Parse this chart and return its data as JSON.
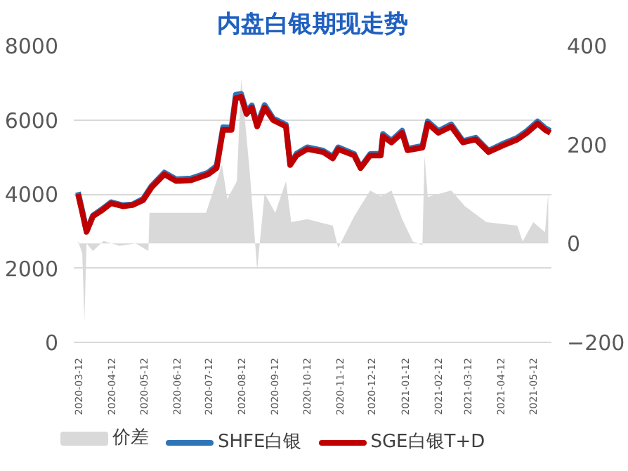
{
  "chart_data": {
    "type": "line",
    "title": "内盘白银期现走势",
    "xlim": [
      "2020-03-08",
      "2021-05-30"
    ],
    "xticks": [
      {
        "value": "2020-03-12",
        "label": "2020-03-12"
      },
      {
        "value": "2020-04-12",
        "label": "2020-04-12"
      },
      {
        "value": "2020-05-12",
        "label": "2020-05-12"
      },
      {
        "value": "2020-06-12",
        "label": "2020-06-12"
      },
      {
        "value": "2020-07-12",
        "label": "2020-07-12"
      },
      {
        "value": "2020-08-12",
        "label": "2020-08-12"
      },
      {
        "value": "2020-09-12",
        "label": "2020-09-12"
      },
      {
        "value": "2020-10-12",
        "label": "2020-10-12"
      },
      {
        "value": "2020-11-12",
        "label": "2020-11-12"
      },
      {
        "value": "2020-12-12",
        "label": "2020-12-12"
      },
      {
        "value": "2021-01-12",
        "label": "2021-01-12"
      },
      {
        "value": "2021-02-12",
        "label": "2021-02-12"
      },
      {
        "value": "2021-03-12",
        "label": "2021-03-12"
      },
      {
        "value": "2021-04-12",
        "label": "2021-04-12"
      },
      {
        "value": "2021-05-12",
        "label": "2021-05-12"
      }
    ],
    "ylim": [
      0,
      8000
    ],
    "yticks": [
      0,
      2000,
      4000,
      6000,
      8000
    ],
    "y2lim": [
      -200,
      400
    ],
    "y2ticks": [
      -200,
      0,
      200,
      400
    ],
    "grid": "y",
    "legend": "bottom",
    "series": [
      {
        "name": "价差",
        "type": "area",
        "axis": "y2",
        "color": "#d9d9d9",
        "x": [
          "2020-03-12",
          "2020-03-16",
          "2020-03-18",
          "2020-03-20",
          "2020-03-26",
          "2020-04-05",
          "2020-04-20",
          "2020-05-05",
          "2020-05-17",
          "2020-05-18",
          "2020-06-10",
          "2020-07-10",
          "2020-07-25",
          "2020-07-30",
          "2020-08-08",
          "2020-08-12",
          "2020-08-20",
          "2020-08-27",
          "2020-09-03",
          "2020-09-13",
          "2020-09-23",
          "2020-09-28",
          "2020-10-13",
          "2020-11-06",
          "2020-11-11",
          "2020-11-26",
          "2020-12-11",
          "2020-12-21",
          "2020-12-31",
          "2021-01-10",
          "2021-01-20",
          "2021-01-29",
          "2021-01-31",
          "2021-02-03",
          "2021-02-25",
          "2021-03-10",
          "2021-03-30",
          "2021-04-28",
          "2021-05-03",
          "2021-05-13",
          "2021-05-24",
          "2021-05-27"
        ],
        "values": [
          5,
          -20,
          -157,
          0,
          -15,
          5,
          -5,
          0,
          -15,
          62,
          62,
          62,
          159,
          90,
          126,
          333,
          146,
          -54,
          101,
          62,
          126,
          43,
          49,
          36,
          -9,
          55,
          107,
          95,
          107,
          49,
          4,
          -3,
          178,
          94,
          107,
          75,
          43,
          36,
          4,
          43,
          23,
          101
        ]
      },
      {
        "name": "SHFE白银",
        "type": "line",
        "color": "#2e75b6",
        "x": [
          "2020-03-12",
          "2020-03-16",
          "2020-03-20",
          "2020-03-26",
          "2020-04-03",
          "2020-04-12",
          "2020-04-23",
          "2020-05-02",
          "2020-05-12",
          "2020-05-20",
          "2020-06-01",
          "2020-06-12",
          "2020-06-26",
          "2020-07-12",
          "2020-07-20",
          "2020-07-26",
          "2020-08-03",
          "2020-08-07",
          "2020-08-12",
          "2020-08-17",
          "2020-08-22",
          "2020-08-27",
          "2020-09-03",
          "2020-09-11",
          "2020-09-23",
          "2020-09-27",
          "2020-10-03",
          "2020-10-13",
          "2020-10-28",
          "2020-11-06",
          "2020-11-11",
          "2020-11-26",
          "2020-12-02",
          "2020-12-11",
          "2020-12-21",
          "2020-12-23",
          "2020-12-31",
          "2021-01-10",
          "2021-01-15",
          "2021-01-29",
          "2021-02-03",
          "2021-02-13",
          "2021-02-25",
          "2021-03-08",
          "2021-03-20",
          "2021-04-01",
          "2021-04-14",
          "2021-04-28",
          "2021-05-07",
          "2021-05-17",
          "2021-05-24",
          "2021-05-29"
        ],
        "values": [
          4050,
          3550,
          3000,
          3420,
          3580,
          3780,
          3700,
          3720,
          3870,
          4220,
          4580,
          4400,
          4420,
          4580,
          4760,
          5800,
          5790,
          6680,
          6700,
          6230,
          6390,
          5870,
          6400,
          6040,
          5870,
          4800,
          5090,
          5260,
          5170,
          5010,
          5260,
          5080,
          4720,
          5080,
          5090,
          5620,
          5440,
          5710,
          5220,
          5300,
          5960,
          5700,
          5880,
          5430,
          5520,
          5170,
          5350,
          5520,
          5700,
          5960,
          5780,
          5700
        ]
      },
      {
        "name": "SGE白银T+D",
        "type": "line",
        "color": "#c00000",
        "x": [
          "2020-03-12",
          "2020-03-16",
          "2020-03-20",
          "2020-03-26",
          "2020-04-03",
          "2020-04-12",
          "2020-04-23",
          "2020-05-02",
          "2020-05-12",
          "2020-05-20",
          "2020-06-01",
          "2020-06-12",
          "2020-06-26",
          "2020-07-12",
          "2020-07-20",
          "2020-07-26",
          "2020-08-03",
          "2020-08-07",
          "2020-08-12",
          "2020-08-17",
          "2020-08-22",
          "2020-08-27",
          "2020-09-03",
          "2020-09-11",
          "2020-09-23",
          "2020-09-27",
          "2020-10-03",
          "2020-10-13",
          "2020-10-28",
          "2020-11-06",
          "2020-11-11",
          "2020-11-26",
          "2020-12-02",
          "2020-12-11",
          "2020-12-21",
          "2020-12-23",
          "2020-12-31",
          "2021-01-10",
          "2021-01-15",
          "2021-01-29",
          "2021-02-03",
          "2021-02-13",
          "2021-02-25",
          "2021-03-08",
          "2021-03-20",
          "2021-04-01",
          "2021-04-14",
          "2021-04-28",
          "2021-05-07",
          "2021-05-17",
          "2021-05-24",
          "2021-05-29"
        ],
        "values": [
          4000,
          3500,
          2980,
          3400,
          3550,
          3750,
          3670,
          3700,
          3830,
          4180,
          4530,
          4350,
          4370,
          4530,
          4700,
          5730,
          5730,
          6590,
          6620,
          6160,
          6330,
          5820,
          6330,
          5990,
          5820,
          4780,
          5040,
          5210,
          5130,
          4960,
          5210,
          5040,
          4700,
          5040,
          5040,
          5560,
          5390,
          5650,
          5180,
          5250,
          5900,
          5650,
          5820,
          5390,
          5470,
          5130,
          5300,
          5470,
          5650,
          5900,
          5730,
          5650
        ]
      }
    ]
  }
}
